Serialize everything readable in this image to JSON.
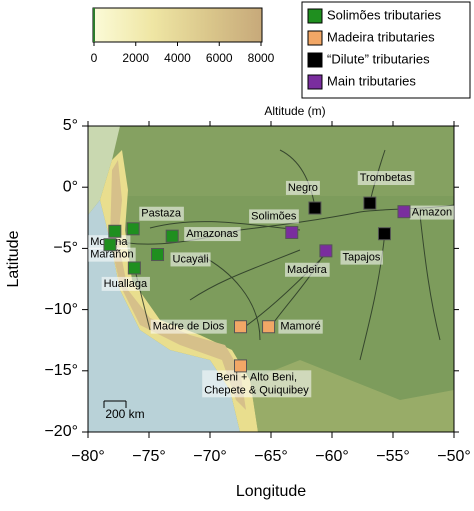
{
  "chart_data": {
    "type": "map",
    "xlabel": "Longitude",
    "ylabel": "Latitude",
    "xlim": [
      -80,
      -50
    ],
    "ylim": [
      -20,
      5
    ],
    "xticks": [
      {
        "value": -80,
        "label": "−80°"
      },
      {
        "value": -75,
        "label": "−75°"
      },
      {
        "value": -70,
        "label": "−70°"
      },
      {
        "value": -65,
        "label": "−65°"
      },
      {
        "value": -60,
        "label": "−60°"
      },
      {
        "value": -55,
        "label": "−55°"
      },
      {
        "value": -50,
        "label": "−50°"
      }
    ],
    "yticks": [
      {
        "value": 5,
        "label": "5°"
      },
      {
        "value": 0,
        "label": "0°"
      },
      {
        "value": -5,
        "label": "−5°"
      },
      {
        "value": -10,
        "label": "−10°"
      },
      {
        "value": -15,
        "label": "−15°"
      },
      {
        "value": -20,
        "label": "−20°"
      }
    ],
    "colorbar": {
      "label": "Altitude (m)",
      "lim": [
        0,
        8000
      ],
      "ticks": [
        0,
        2000,
        4000,
        6000,
        8000
      ]
    },
    "scale_bar_label": "200 km",
    "series": [
      {
        "name": "Solimões tributaries",
        "color": "#1f8f1f",
        "labels": [
          "Morona",
          "Pastaza",
          "Marañon",
          "Huallaga",
          "Ucayali",
          "Amazonas"
        ],
        "x": [
          -77.8,
          -76.3,
          -78.2,
          -76.2,
          -74.3,
          -73.1
        ],
        "y": [
          -3.6,
          -3.4,
          -4.7,
          -6.6,
          -5.5,
          -4.0
        ]
      },
      {
        "name": "Madeira tributaries",
        "color": "#f2a766",
        "labels": [
          "Madre de Dios",
          "Mamoré",
          [
            "Beni + Alto Beni,",
            "Chepete & Quiquibey"
          ]
        ],
        "x": [
          -67.5,
          -65.2,
          -67.5
        ],
        "y": [
          -11.4,
          -11.4,
          -14.6
        ]
      },
      {
        "name": "“Dilute” tributaries",
        "color": "#000000",
        "labels": [
          "Negro",
          "Trombetas",
          "Tapajos"
        ],
        "x": [
          -61.4,
          -56.9,
          -55.7
        ],
        "y": [
          -1.7,
          -1.3,
          -3.8
        ]
      },
      {
        "name": "Main tributaries",
        "color": "#7a2e9e",
        "labels": [
          "Solimões",
          "Madeira",
          "Amazon"
        ],
        "x": [
          -63.3,
          -60.5,
          -54.1
        ],
        "y": [
          -3.7,
          -5.2,
          -2.0
        ]
      }
    ]
  }
}
